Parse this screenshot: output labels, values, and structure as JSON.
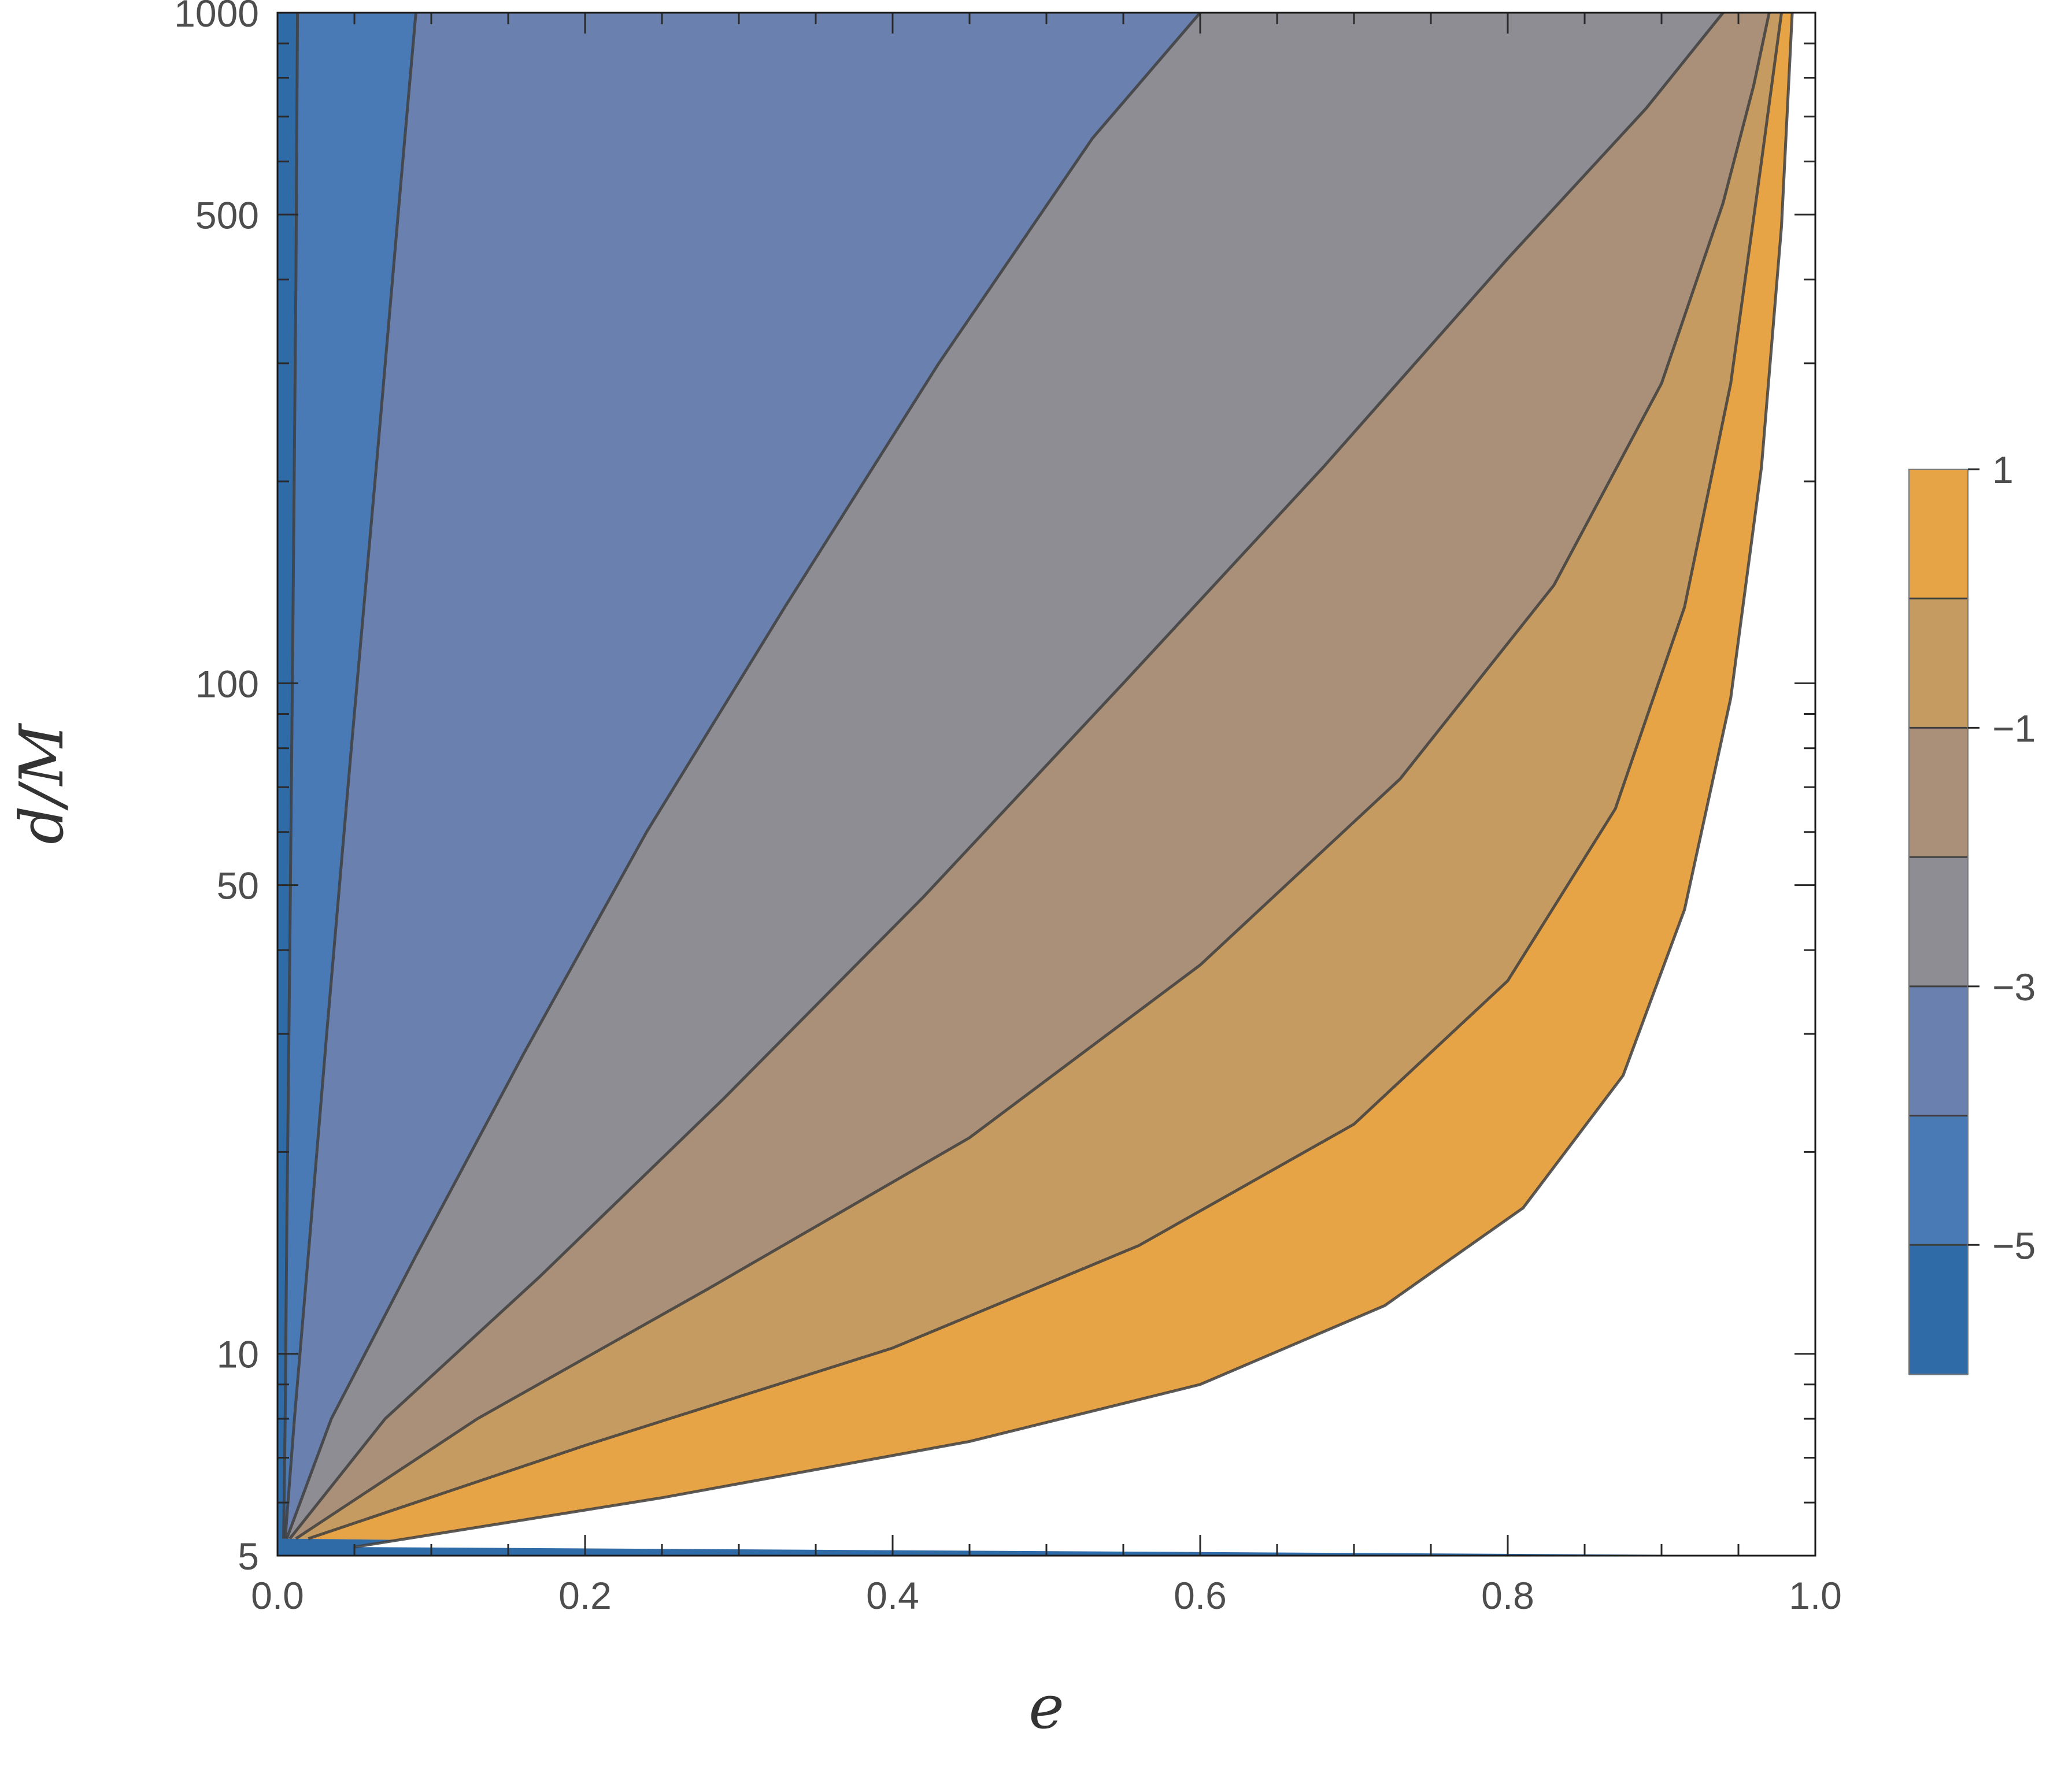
{
  "page": {
    "background": "#ffffff"
  },
  "chart_data": {
    "type": "contour",
    "title": "",
    "xlabel": "e",
    "ylabel": "d/M",
    "xlim": [
      0,
      1
    ],
    "ylim": [
      5,
      1000
    ],
    "y_scale": "log",
    "x_ticks": {
      "major": [
        0,
        0.2,
        0.4,
        0.6,
        0.8,
        1.0
      ],
      "labels": [
        "0.0",
        "0.2",
        "0.4",
        "0.6",
        "0.8",
        "1.0"
      ],
      "minor": [
        0.05,
        0.1,
        0.15,
        0.25,
        0.3,
        0.35,
        0.45,
        0.5,
        0.55,
        0.65,
        0.7,
        0.75,
        0.85,
        0.9,
        0.95
      ]
    },
    "y_ticks": {
      "major": [
        5,
        10,
        50,
        100,
        500,
        1000
      ],
      "labels": [
        "5",
        "10",
        "50",
        "100",
        "500",
        "1000"
      ],
      "minor": [
        6,
        7,
        8,
        9,
        20,
        30,
        40,
        60,
        70,
        80,
        90,
        200,
        300,
        400,
        600,
        700,
        800,
        900
      ]
    },
    "contour_levels": [
      -5,
      -4,
      -3,
      -2,
      -1,
      0,
      1
    ],
    "band_colors": [
      "#2f6ba7",
      "#4a7ab5",
      "#6a81af",
      "#8f8d94",
      "#aa9078",
      "#c69b61",
      "#e7a446"
    ],
    "outside_color": "#ffffff",
    "line_color": "#3f3f3f",
    "frame_color": "#1a1a1a",
    "tick_color": "#2a2a2a",
    "label_color": "#4d4d4d",
    "contours": [
      {
        "level": -5,
        "points": [
          [
            0.004,
            5.3
          ],
          [
            0.005,
            8
          ],
          [
            0.006,
            15
          ],
          [
            0.008,
            40
          ],
          [
            0.01,
            120
          ],
          [
            0.012,
            400
          ],
          [
            0.013,
            1000
          ]
        ]
      },
      {
        "level": -4,
        "points": [
          [
            0.005,
            5.3
          ],
          [
            0.011,
            8
          ],
          [
            0.02,
            14
          ],
          [
            0.032,
            30
          ],
          [
            0.048,
            80
          ],
          [
            0.065,
            220
          ],
          [
            0.08,
            550
          ],
          [
            0.09,
            1000
          ]
        ]
      },
      {
        "level": -3,
        "points": [
          [
            0.006,
            5.3
          ],
          [
            0.035,
            8
          ],
          [
            0.09,
            14
          ],
          [
            0.16,
            28
          ],
          [
            0.24,
            60
          ],
          [
            0.33,
            130
          ],
          [
            0.43,
            300
          ],
          [
            0.53,
            650
          ],
          [
            0.6,
            1000
          ]
        ]
      },
      {
        "level": -2,
        "points": [
          [
            0.008,
            5.3
          ],
          [
            0.07,
            8
          ],
          [
            0.17,
            13
          ],
          [
            0.29,
            24
          ],
          [
            0.42,
            48
          ],
          [
            0.55,
            100
          ],
          [
            0.68,
            210
          ],
          [
            0.8,
            430
          ],
          [
            0.89,
            720
          ],
          [
            0.94,
            1000
          ]
        ]
      },
      {
        "level": -1,
        "points": [
          [
            0.012,
            5.3
          ],
          [
            0.13,
            8
          ],
          [
            0.28,
            12.5
          ],
          [
            0.45,
            21
          ],
          [
            0.6,
            38
          ],
          [
            0.73,
            72
          ],
          [
            0.83,
            140
          ],
          [
            0.9,
            280
          ],
          [
            0.94,
            520
          ],
          [
            0.96,
            780
          ],
          [
            0.97,
            1000
          ]
        ]
      },
      {
        "level": 0,
        "points": [
          [
            0.02,
            5.3
          ],
          [
            0.2,
            7.3
          ],
          [
            0.4,
            10.2
          ],
          [
            0.56,
            14.5
          ],
          [
            0.7,
            22
          ],
          [
            0.8,
            36
          ],
          [
            0.87,
            65
          ],
          [
            0.915,
            130
          ],
          [
            0.945,
            280
          ],
          [
            0.965,
            600
          ],
          [
            0.978,
            1000
          ]
        ]
      },
      {
        "level": 1,
        "points": [
          [
            0.05,
            5.15
          ],
          [
            0.25,
            6.1
          ],
          [
            0.45,
            7.4
          ],
          [
            0.6,
            9.0
          ],
          [
            0.72,
            11.8
          ],
          [
            0.81,
            16.5
          ],
          [
            0.875,
            26
          ],
          [
            0.915,
            46
          ],
          [
            0.945,
            95
          ],
          [
            0.965,
            210
          ],
          [
            0.978,
            480
          ],
          [
            0.985,
            1000
          ]
        ]
      }
    ],
    "legend": {
      "labels": [
        "1",
        "−1",
        "−3",
        "−5"
      ],
      "label_levels": [
        1,
        -1,
        -3,
        -5
      ],
      "top_level": 1,
      "bottom_level": -6,
      "colors_top_to_bottom": [
        "#e7a446",
        "#c69b61",
        "#aa9078",
        "#8f8d94",
        "#6a81af",
        "#4a7ab5",
        "#2f6ba7"
      ]
    }
  }
}
